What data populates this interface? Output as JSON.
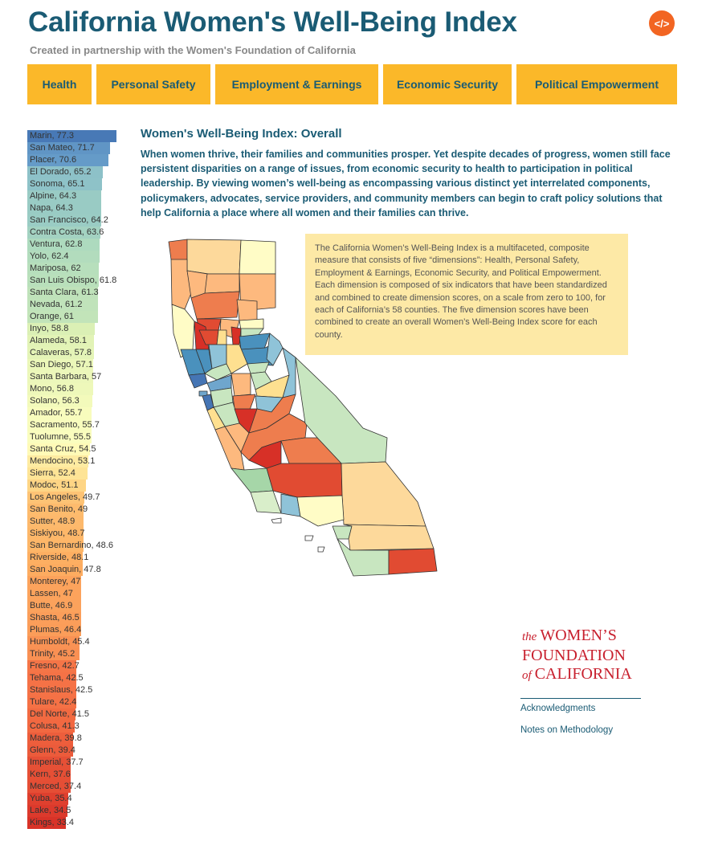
{
  "header": {
    "title": "California Women's Well-Being Index",
    "subtitle": "Created in partnership with the Women's Foundation of California",
    "embed_icon": "code-icon",
    "embed_label": "</>"
  },
  "nav": {
    "tabs": [
      {
        "label": "Health"
      },
      {
        "label": "Personal Safety"
      },
      {
        "label": "Employment & Earnings"
      },
      {
        "label": "Economic Security"
      },
      {
        "label": "Political Empowerment"
      }
    ]
  },
  "main": {
    "section_title": "Women's Well-Being Index: Overall",
    "intro": "When women thrive, their families and communities prosper. Yet despite decades of progress, women still face persistent disparities on a range of issues, from economic security to health to participation in political leadership. By viewing women’s well-being as encompassing various distinct yet interrelated components, policymakers, advocates, service providers, and community members can begin to craft policy solutions that help California a place where all women and their families can thrive.",
    "info_box": "The California Women’s Well-Being Index is a multifaceted, composite measure that consists of five “dimensions”: Health, Personal Safety, Employment & Earnings, Economic Security, and Political Empowerment. Each dimension is composed of six indicators that have been standardized and combined to create dimension scores, on a scale from zero to 100, for each of California’s 58 counties. The five dimension scores have been combined to create an overall Women’s Well-Being Index score for each county."
  },
  "footer": {
    "logo_the": "the",
    "logo_womens": "WOMEN’S",
    "logo_foundation": "FOUNDATION",
    "logo_of": "of",
    "logo_california": "CALIFORNIA",
    "links": [
      {
        "label": "Acknowledgments"
      },
      {
        "label": "Notes on Methodology"
      }
    ]
  },
  "colors": {
    "title": "#1a5b74",
    "nav_tab": "#fbb829",
    "info_box": "#fde9a6",
    "logo": "#c8202e",
    "embed_button": "#f26522"
  },
  "chart_data": {
    "type": "bar",
    "categories": [
      "Marin",
      "San Mateo",
      "Placer",
      "El Dorado",
      "Sonoma",
      "Alpine",
      "Napa",
      "San Francisco",
      "Contra Costa",
      "Ventura",
      "Yolo",
      "Mariposa",
      "San Luis Obispo",
      "Santa Clara",
      "Nevada",
      "Orange",
      "Inyo",
      "Alameda",
      "Calaveras",
      "San Diego",
      "Santa Barbara",
      "Mono",
      "Solano",
      "Amador",
      "Sacramento",
      "Tuolumne",
      "Santa Cruz",
      "Mendocino",
      "Sierra",
      "Modoc",
      "Los Angeles",
      "San Benito",
      "Sutter",
      "Siskiyou",
      "San Bernardino",
      "Riverside",
      "San Joaquin",
      "Monterey",
      "Lassen",
      "Butte",
      "Shasta",
      "Plumas",
      "Humboldt",
      "Trinity",
      "Fresno",
      "Tehama",
      "Stanislaus",
      "Tulare",
      "Del Norte",
      "Colusa",
      "Madera",
      "Glenn",
      "Imperial",
      "Kern",
      "Merced",
      "Yuba",
      "Lake",
      "Kings"
    ],
    "values": [
      77.3,
      71.7,
      70.6,
      65.2,
      65.1,
      64.3,
      64.3,
      64.2,
      63.6,
      62.8,
      62.4,
      62,
      61.8,
      61.3,
      61.2,
      61,
      58.8,
      58.1,
      57.8,
      57.1,
      57,
      56.8,
      56.3,
      55.7,
      55.7,
      55.5,
      54.5,
      53.1,
      52.4,
      51.1,
      49.7,
      49,
      48.9,
      48.7,
      48.6,
      48.1,
      47.8,
      47,
      47,
      46.9,
      46.5,
      46.4,
      45.4,
      45.2,
      42.7,
      42.5,
      42.5,
      42.4,
      41.5,
      41.3,
      39.8,
      39.4,
      37.7,
      37.6,
      37.4,
      35.4,
      34.5,
      33.4
    ],
    "title": "",
    "xlabel": "",
    "ylabel": "",
    "xlim": [
      0,
      77.3
    ]
  }
}
